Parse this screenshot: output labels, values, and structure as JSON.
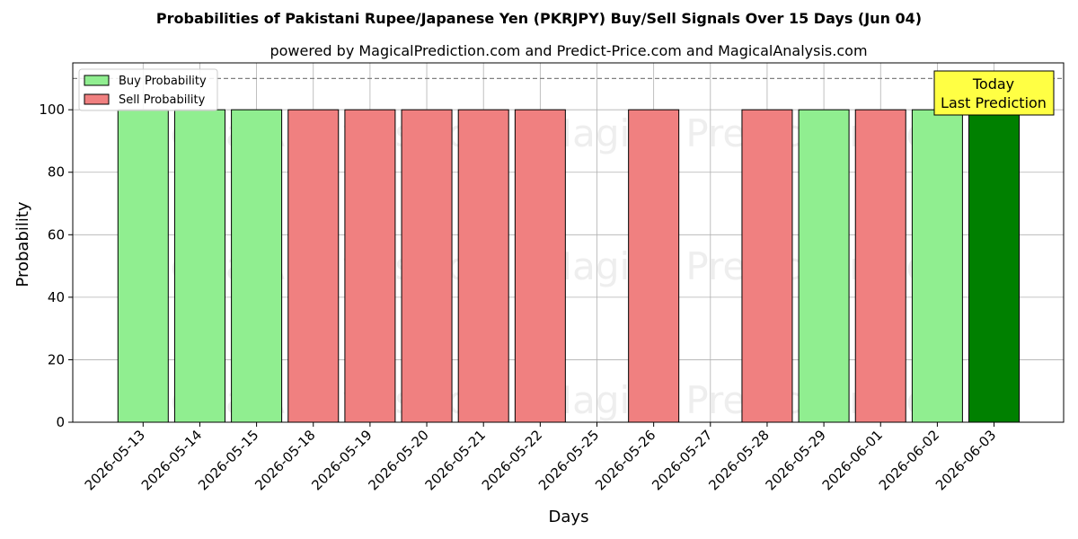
{
  "chart_data": {
    "type": "bar",
    "title": "Probabilities of Pakistani Rupee/Japanese Yen (PKRJPY) Buy/Sell Signals Over 15 Days (Jun 04)",
    "subtitle": "powered by MagicalPrediction.com and Predict-Price.com and MagicalAnalysis.com",
    "xlabel": "Days",
    "ylabel": "Probability",
    "ylim": [
      0,
      115
    ],
    "yticks": [
      0,
      20,
      40,
      60,
      80,
      100
    ],
    "reference_line": 110,
    "grid": true,
    "legend_position": "top-left",
    "categories": [
      "2026-05-13",
      "2026-05-14",
      "2026-05-15",
      "2026-05-18",
      "2026-05-19",
      "2026-05-20",
      "2026-05-21",
      "2026-05-22",
      "2026-05-25",
      "2026-05-26",
      "2026-05-27",
      "2026-05-28",
      "2026-05-29",
      "2026-06-01",
      "2026-06-02",
      "2026-06-03"
    ],
    "series": [
      {
        "name": "Buy Probability",
        "color": "#90ee90",
        "values": [
          100,
          100,
          100,
          0,
          0,
          0,
          0,
          0,
          0,
          0,
          0,
          0,
          100,
          0,
          100,
          100
        ]
      },
      {
        "name": "Sell Probability",
        "color": "#f08080",
        "values": [
          0,
          0,
          0,
          100,
          100,
          100,
          100,
          100,
          0,
          100,
          0,
          100,
          0,
          100,
          0,
          0
        ]
      }
    ],
    "highlight": {
      "index": 15,
      "color": "#008000"
    },
    "annotation": {
      "line1": "Today",
      "line2": "Last Prediction",
      "color": "#ffff44"
    },
    "watermarks": [
      "MagicalAnalysis.com",
      "Magica Prediction.com"
    ]
  }
}
